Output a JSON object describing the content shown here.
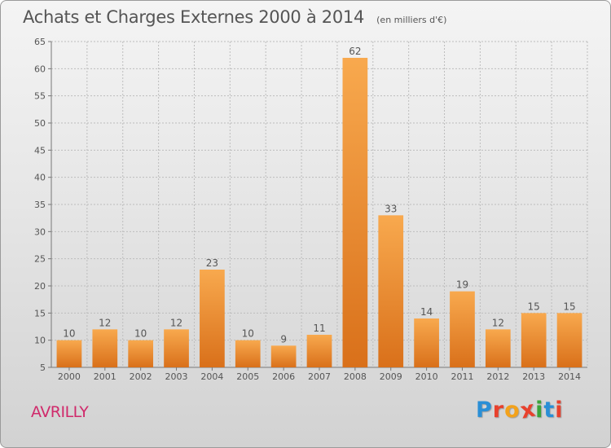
{
  "title": "Achats et Charges Externes 2000 à 2014",
  "subtitle": "(en milliers d'€)",
  "commune": "AVRILLY",
  "brand": {
    "text": "Proxiti",
    "letters": [
      "P",
      "r",
      "o",
      "x",
      "i",
      "t",
      "i"
    ],
    "letter_colors": [
      "#2a8fd6",
      "#e8412d",
      "#f3a21b",
      "#e8412d",
      "#3aa43a",
      "#2a8fd6",
      "#e8412d"
    ]
  },
  "colors": {
    "bar_top": "#f8a94e",
    "bar_bottom": "#d9701a",
    "grid": "#bdbdbd",
    "text": "#555555"
  },
  "chart_data": {
    "type": "bar",
    "categories": [
      "2000",
      "2001",
      "2002",
      "2003",
      "2004",
      "2005",
      "2006",
      "2007",
      "2008",
      "2009",
      "2010",
      "2011",
      "2012",
      "2013",
      "2014"
    ],
    "values": [
      10,
      12,
      10,
      12,
      23,
      10,
      9,
      11,
      62,
      33,
      14,
      19,
      12,
      15,
      15
    ],
    "ylim": [
      5,
      65
    ],
    "yticks": [
      5,
      10,
      15,
      20,
      25,
      30,
      35,
      40,
      45,
      50,
      55,
      60,
      65
    ],
    "grid": true,
    "data_labels": true
  }
}
